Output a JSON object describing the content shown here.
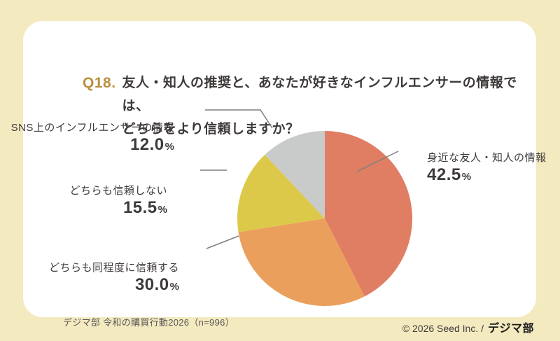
{
  "title": {
    "qnum": "Q18.",
    "line1": "友人・知人の推奨と、あなたが好きなインフルエンサーの情報では、",
    "line2": "どちらをより信頼しますか？"
  },
  "chart_data": {
    "type": "pie",
    "title": "Q18. 友人・知人の推奨と、あなたが好きなインフルエンサーの情報では、どちらをより信頼しますか？",
    "start_angle_deg": -90,
    "direction": "clockwise",
    "slices": [
      {
        "key": "friends",
        "label": "身近な友人・知人の情報",
        "value": 42.5,
        "display": "42.5",
        "unit": "%",
        "color": "#E07E63"
      },
      {
        "key": "both",
        "label": "どちらも同程度に信頼する",
        "value": 30.0,
        "display": "30.0",
        "unit": "%",
        "color": "#EB9F5C"
      },
      {
        "key": "neither",
        "label": "どちらも信頼しない",
        "value": 15.5,
        "display": "15.5",
        "unit": "%",
        "color": "#DCC94A"
      },
      {
        "key": "sns",
        "label": "SNS上のインフルエンサーの情報",
        "value": 12.0,
        "display": "12.0",
        "unit": "%",
        "color": "#C9CACA"
      }
    ]
  },
  "source_note": "デジマ部 令和の購買行動2026（n=996）",
  "footer": {
    "copyright": "© 2026 Seed Inc. /",
    "logo": "デジマ部"
  },
  "colors": {
    "background": "#F3EAC0",
    "card": "#FFFFFF",
    "accent_gold": "#B9903E",
    "text": "#3E3A39",
    "leader_line": "#7F7F7F"
  }
}
